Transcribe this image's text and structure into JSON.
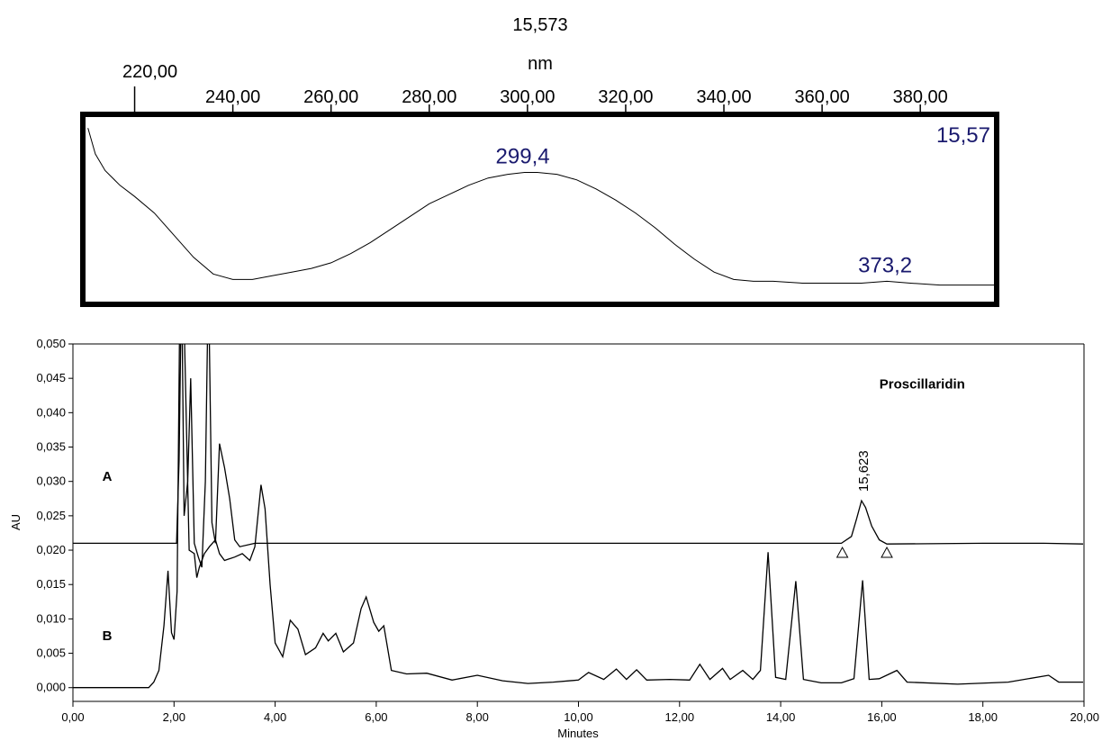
{
  "chart_data": [
    {
      "type": "line",
      "title": "15,573",
      "xlabel": "nm",
      "ylabel": "",
      "xlim": [
        210,
        395
      ],
      "x_ticks": [
        "220,00",
        "240,00",
        "260,00",
        "280,00",
        "300,00",
        "320,00",
        "340,00",
        "360,00",
        "380,00"
      ],
      "x_tick_values": [
        220,
        240,
        260,
        280,
        300,
        320,
        340,
        360,
        380
      ],
      "grid": false,
      "retention_label": "15,57",
      "series": [
        {
          "values": [
            [
              210.5,
              0.94
            ],
            [
              212,
              0.8
            ],
            [
              214,
              0.71
            ],
            [
              217,
              0.63
            ],
            [
              220,
              0.57
            ],
            [
              224,
              0.48
            ],
            [
              228,
              0.36
            ],
            [
              232,
              0.24
            ],
            [
              236,
              0.15
            ],
            [
              240,
              0.12
            ],
            [
              244,
              0.12
            ],
            [
              248,
              0.14
            ],
            [
              252,
              0.16
            ],
            [
              256,
              0.18
            ],
            [
              260,
              0.21
            ],
            [
              264,
              0.26
            ],
            [
              268,
              0.32
            ],
            [
              272,
              0.39
            ],
            [
              276,
              0.46
            ],
            [
              280,
              0.53
            ],
            [
              284,
              0.58
            ],
            [
              288,
              0.63
            ],
            [
              292,
              0.67
            ],
            [
              296,
              0.69
            ],
            [
              299.4,
              0.7
            ],
            [
              302,
              0.7
            ],
            [
              306,
              0.69
            ],
            [
              310,
              0.66
            ],
            [
              314,
              0.61
            ],
            [
              318,
              0.55
            ],
            [
              322,
              0.48
            ],
            [
              326,
              0.4
            ],
            [
              330,
              0.31
            ],
            [
              334,
              0.23
            ],
            [
              338,
              0.16
            ],
            [
              342,
              0.12
            ],
            [
              346,
              0.11
            ],
            [
              350,
              0.11
            ],
            [
              356,
              0.1
            ],
            [
              362,
              0.1
            ],
            [
              368,
              0.1
            ],
            [
              373.2,
              0.11
            ],
            [
              378,
              0.1
            ],
            [
              384,
              0.09
            ],
            [
              390,
              0.09
            ],
            [
              395,
              0.09
            ]
          ]
        }
      ],
      "annotations": [
        {
          "text": "299,4",
          "x": 299.4,
          "y": 0.7
        },
        {
          "text": "373,2",
          "x": 373.2,
          "y": 0.11
        }
      ]
    },
    {
      "type": "line",
      "title": "",
      "xlabel": "Minutes",
      "ylabel": "AU",
      "xlim": [
        0,
        20
      ],
      "ylim": [
        -0.002,
        0.05
      ],
      "x_ticks": [
        "0,00",
        "2,00",
        "4,00",
        "6,00",
        "8,00",
        "10,00",
        "12,00",
        "14,00",
        "16,00",
        "18,00",
        "20,00"
      ],
      "x_tick_values": [
        0,
        2,
        4,
        6,
        8,
        10,
        12,
        14,
        16,
        18,
        20
      ],
      "y_ticks": [
        "0,000",
        "0,005",
        "0,010",
        "0,015",
        "0,020",
        "0,025",
        "0,030",
        "0,035",
        "0,040",
        "0,045",
        "0,050"
      ],
      "y_tick_values": [
        0,
        0.005,
        0.01,
        0.015,
        0.02,
        0.025,
        0.03,
        0.035,
        0.04,
        0.045,
        0.05
      ],
      "grid": false,
      "series": [
        {
          "name": "A",
          "values": [
            [
              0,
              0.021
            ],
            [
              1.5,
              0.021
            ],
            [
              2.05,
              0.021
            ],
            [
              2.1,
              0.033
            ],
            [
              2.15,
              0.06
            ],
            [
              2.2,
              0.025
            ],
            [
              2.27,
              0.03
            ],
            [
              2.33,
              0.045
            ],
            [
              2.4,
              0.021
            ],
            [
              2.48,
              0.019
            ],
            [
              2.55,
              0.0175
            ],
            [
              2.62,
              0.03
            ],
            [
              2.68,
              0.06
            ],
            [
              2.75,
              0.024
            ],
            [
              2.82,
              0.021
            ],
            [
              2.9,
              0.0355
            ],
            [
              3.0,
              0.032
            ],
            [
              3.1,
              0.0275
            ],
            [
              3.2,
              0.0215
            ],
            [
              3.3,
              0.0205
            ],
            [
              3.6,
              0.021
            ],
            [
              15.2,
              0.021
            ],
            [
              15.4,
              0.022
            ],
            [
              15.5,
              0.0245
            ],
            [
              15.6,
              0.0272
            ],
            [
              15.68,
              0.0262
            ],
            [
              15.8,
              0.0235
            ],
            [
              15.95,
              0.0215
            ],
            [
              16.1,
              0.0209
            ],
            [
              18,
              0.021
            ],
            [
              19.2,
              0.021
            ],
            [
              20,
              0.0209
            ]
          ]
        },
        {
          "name": "B",
          "values": [
            [
              0,
              0.0
            ],
            [
              1.5,
              0.0
            ],
            [
              1.6,
              0.0008
            ],
            [
              1.7,
              0.0025
            ],
            [
              1.8,
              0.009
            ],
            [
              1.88,
              0.017
            ],
            [
              1.95,
              0.008
            ],
            [
              2.0,
              0.007
            ],
            [
              2.06,
              0.014
            ],
            [
              2.12,
              0.06
            ],
            [
              2.18,
              0.06
            ],
            [
              2.3,
              0.02
            ],
            [
              2.4,
              0.0195
            ],
            [
              2.45,
              0.016
            ],
            [
              2.5,
              0.0175
            ],
            [
              2.6,
              0.0195
            ],
            [
              2.7,
              0.0205
            ],
            [
              2.82,
              0.0215
            ],
            [
              2.9,
              0.0195
            ],
            [
              3.0,
              0.0185
            ],
            [
              3.2,
              0.019
            ],
            [
              3.35,
              0.0195
            ],
            [
              3.5,
              0.0185
            ],
            [
              3.6,
              0.0205
            ],
            [
              3.72,
              0.0295
            ],
            [
              3.8,
              0.026
            ],
            [
              3.9,
              0.015
            ],
            [
              4.0,
              0.0065
            ],
            [
              4.15,
              0.0045
            ],
            [
              4.3,
              0.0098
            ],
            [
              4.45,
              0.0085
            ],
            [
              4.6,
              0.0048
            ],
            [
              4.8,
              0.0058
            ],
            [
              4.95,
              0.0079
            ],
            [
              5.05,
              0.0068
            ],
            [
              5.2,
              0.0079
            ],
            [
              5.35,
              0.0052
            ],
            [
              5.55,
              0.0065
            ],
            [
              5.7,
              0.0115
            ],
            [
              5.8,
              0.0132
            ],
            [
              5.95,
              0.0095
            ],
            [
              6.05,
              0.0082
            ],
            [
              6.15,
              0.009
            ],
            [
              6.3,
              0.0025
            ],
            [
              6.6,
              0.002
            ],
            [
              7.0,
              0.0021
            ],
            [
              7.5,
              0.0011
            ],
            [
              8.0,
              0.0018
            ],
            [
              8.5,
              0.001
            ],
            [
              9.0,
              0.0006
            ],
            [
              9.5,
              0.0008
            ],
            [
              10.0,
              0.0011
            ],
            [
              10.2,
              0.0022
            ],
            [
              10.5,
              0.0012
            ],
            [
              10.75,
              0.0027
            ],
            [
              10.95,
              0.0012
            ],
            [
              11.15,
              0.0026
            ],
            [
              11.35,
              0.0011
            ],
            [
              11.8,
              0.0012
            ],
            [
              12.2,
              0.0011
            ],
            [
              12.4,
              0.0034
            ],
            [
              12.6,
              0.0012
            ],
            [
              12.85,
              0.0028
            ],
            [
              13.0,
              0.0012
            ],
            [
              13.25,
              0.0025
            ],
            [
              13.45,
              0.0012
            ],
            [
              13.6,
              0.0025
            ],
            [
              13.75,
              0.0197
            ],
            [
              13.9,
              0.0015
            ],
            [
              14.1,
              0.0012
            ],
            [
              14.3,
              0.0155
            ],
            [
              14.45,
              0.0012
            ],
            [
              14.8,
              0.0007
            ],
            [
              15.2,
              0.0007
            ],
            [
              15.45,
              0.0013
            ],
            [
              15.62,
              0.0156
            ],
            [
              15.75,
              0.0012
            ],
            [
              15.95,
              0.0013
            ],
            [
              16.3,
              0.0025
            ],
            [
              16.5,
              0.0008
            ],
            [
              17.5,
              0.0005
            ],
            [
              18.5,
              0.0008
            ],
            [
              19.3,
              0.0018
            ],
            [
              19.5,
              0.0008
            ],
            [
              20.0,
              0.0008
            ]
          ]
        }
      ],
      "annotations": [
        {
          "text": "Proscillaridin",
          "x": 16.8,
          "y": 0.0435
        },
        {
          "text": "15,623",
          "x": 15.62,
          "y": 0.0285
        },
        {
          "text": "A",
          "x": 0.58,
          "y": 0.0301
        },
        {
          "text": "B",
          "x": 0.58,
          "y": 0.0069
        }
      ],
      "integration_marks": [
        {
          "x": 15.22,
          "y": 0.0204
        },
        {
          "x": 16.1,
          "y": 0.0204
        }
      ]
    }
  ]
}
